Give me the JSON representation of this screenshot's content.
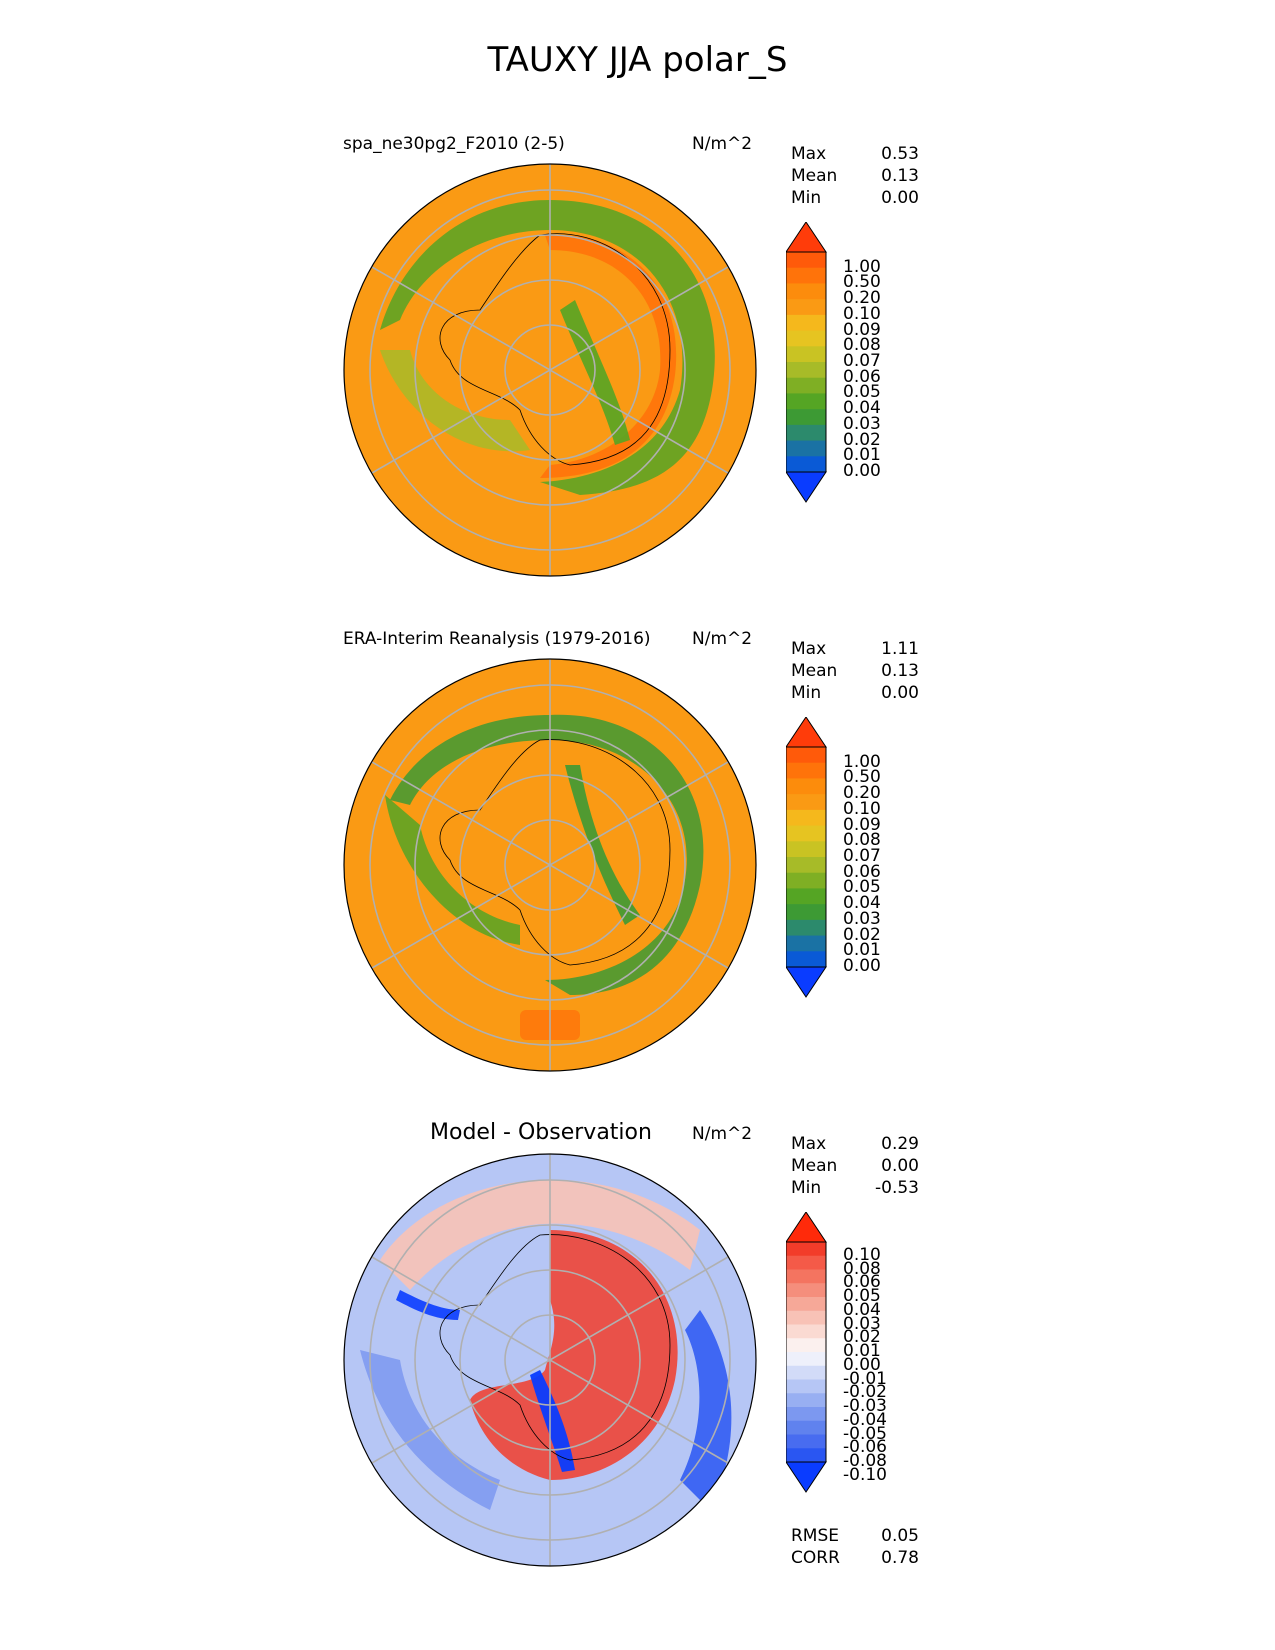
{
  "figure": {
    "title": "TAUXY JJA polar_S"
  },
  "chart_data": [
    {
      "type": "heatmap",
      "projection": "south-polar-stereographic",
      "title": "spa_ne30pg2_F2010 (2-5)",
      "units": "N/m^2",
      "stats": [
        {
          "label": "Max",
          "value": "0.53"
        },
        {
          "label": "Mean",
          "value": "0.13"
        },
        {
          "label": "Min",
          "value": "0.00"
        }
      ],
      "colorbar": {
        "levels": [
          "1.00",
          "0.50",
          "0.20",
          "0.10",
          "0.09",
          "0.08",
          "0.07",
          "0.06",
          "0.05",
          "0.04",
          "0.03",
          "0.02",
          "0.01",
          "0.00"
        ],
        "colors": [
          "#ff3c0a",
          "#ff5a0a",
          "#ff730a",
          "#fc8c0c",
          "#fa9a14",
          "#f5b81c",
          "#e6c421",
          "#c9c323",
          "#a7bb28",
          "#7faf24",
          "#55a524",
          "#3d9a34",
          "#2c8a6c",
          "#1a72a4",
          "#0a5ad6",
          "#0a3cff"
        ],
        "extend": "both"
      }
    },
    {
      "type": "heatmap",
      "projection": "south-polar-stereographic",
      "title": "ERA-Interim Reanalysis (1979-2016)",
      "units": "N/m^2",
      "stats": [
        {
          "label": "Max",
          "value": "1.11"
        },
        {
          "label": "Mean",
          "value": "0.13"
        },
        {
          "label": "Min",
          "value": "0.00"
        }
      ],
      "colorbar": {
        "levels": [
          "1.00",
          "0.50",
          "0.20",
          "0.10",
          "0.09",
          "0.08",
          "0.07",
          "0.06",
          "0.05",
          "0.04",
          "0.03",
          "0.02",
          "0.01",
          "0.00"
        ],
        "colors": [
          "#ff3c0a",
          "#ff5a0a",
          "#ff730a",
          "#fc8c0c",
          "#fa9a14",
          "#f5b81c",
          "#e6c421",
          "#c9c323",
          "#a7bb28",
          "#7faf24",
          "#55a524",
          "#3d9a34",
          "#2c8a6c",
          "#1a72a4",
          "#0a5ad6",
          "#0a3cff"
        ],
        "extend": "both"
      }
    },
    {
      "type": "heatmap",
      "projection": "south-polar-stereographic",
      "title": "Model - Observation",
      "units": "N/m^2",
      "stats": [
        {
          "label": "Max",
          "value": "0.29"
        },
        {
          "label": "Mean",
          "value": "0.00"
        },
        {
          "label": "Min",
          "value": "-0.53"
        }
      ],
      "colorbar": {
        "levels": [
          "0.10",
          "0.08",
          "0.06",
          "0.05",
          "0.04",
          "0.03",
          "0.02",
          "0.01",
          "0.00",
          "-0.01",
          "-0.02",
          "-0.03",
          "-0.04",
          "-0.05",
          "-0.06",
          "-0.08",
          "-0.10"
        ],
        "colors": [
          "#ff2a0a",
          "#f23c2a",
          "#f45a48",
          "#f47460",
          "#f58e7c",
          "#f6a898",
          "#f8c2b6",
          "#fadad2",
          "#fbf0ee",
          "#eef0fb",
          "#d2dbf8",
          "#b6c6f5",
          "#98aff2",
          "#7c98f0",
          "#6082ee",
          "#486cf0",
          "#2a56f2",
          "#0a3cff"
        ],
        "extend": "both"
      },
      "footer_stats": [
        {
          "label": "RMSE",
          "value": "0.05"
        },
        {
          "label": "CORR",
          "value": "0.78"
        }
      ]
    }
  ]
}
